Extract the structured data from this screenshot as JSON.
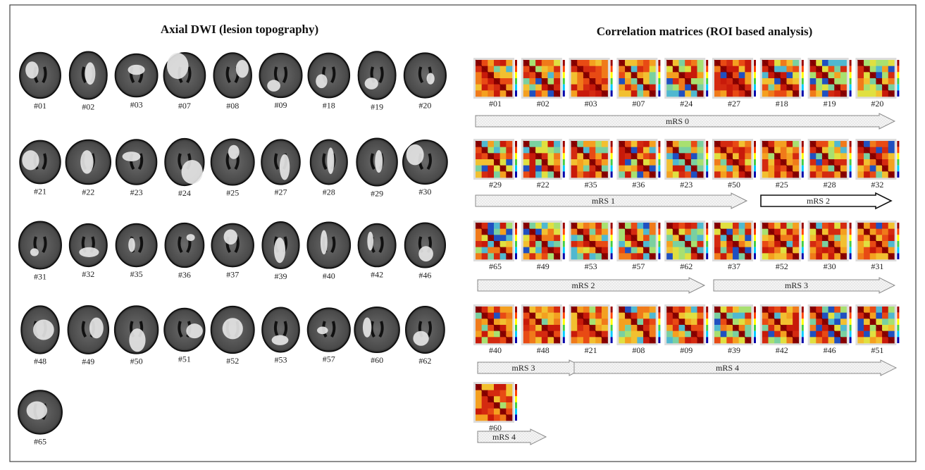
{
  "left": {
    "title": "Axial DWI (lesion topography)",
    "images": [
      [
        "#01",
        "#02",
        "#03",
        "#07",
        "#08",
        "#09",
        "#18",
        "#19",
        "#20"
      ],
      [
        "#21",
        "#22",
        "#23",
        "#24",
        "#25",
        "#27",
        "#28",
        "#29",
        "#30"
      ],
      [
        "#31",
        "#32",
        "#35",
        "#36",
        "#37",
        "#39",
        "#40",
        "#42",
        "#46"
      ],
      [
        "#48",
        "#49",
        "#50",
        "#51",
        "#52",
        "#53",
        "#57",
        "#60",
        "#62"
      ],
      [
        "#65"
      ]
    ]
  },
  "right": {
    "title": "Correlation matrices (ROI based analysis)",
    "rows": [
      {
        "matrices": [
          "#01",
          "#02",
          "#03",
          "#07",
          "#24",
          "#27",
          "#18",
          "#19",
          "#20"
        ],
        "groups": [
          "mRS 0"
        ]
      },
      {
        "matrices": [
          "#29",
          "#22",
          "#35",
          "#36",
          "#23",
          "#50",
          "#25",
          "#28",
          "#32"
        ],
        "groups": [
          "mRS 1",
          "mRS 2"
        ]
      },
      {
        "matrices": [
          "#65",
          "#49",
          "#53",
          "#57",
          "#62",
          "#37",
          "#52",
          "#30",
          "#31"
        ],
        "groups": [
          "mRS 2",
          "mRS 3"
        ]
      },
      {
        "matrices": [
          "#40",
          "#48",
          "#21",
          "#08",
          "#09",
          "#39",
          "#42",
          "#46",
          "#51"
        ],
        "groups": [
          "mRS 3",
          "mRS 4"
        ]
      },
      {
        "matrices": [
          "#60"
        ],
        "groups": [
          "mRS 4"
        ]
      }
    ]
  }
}
